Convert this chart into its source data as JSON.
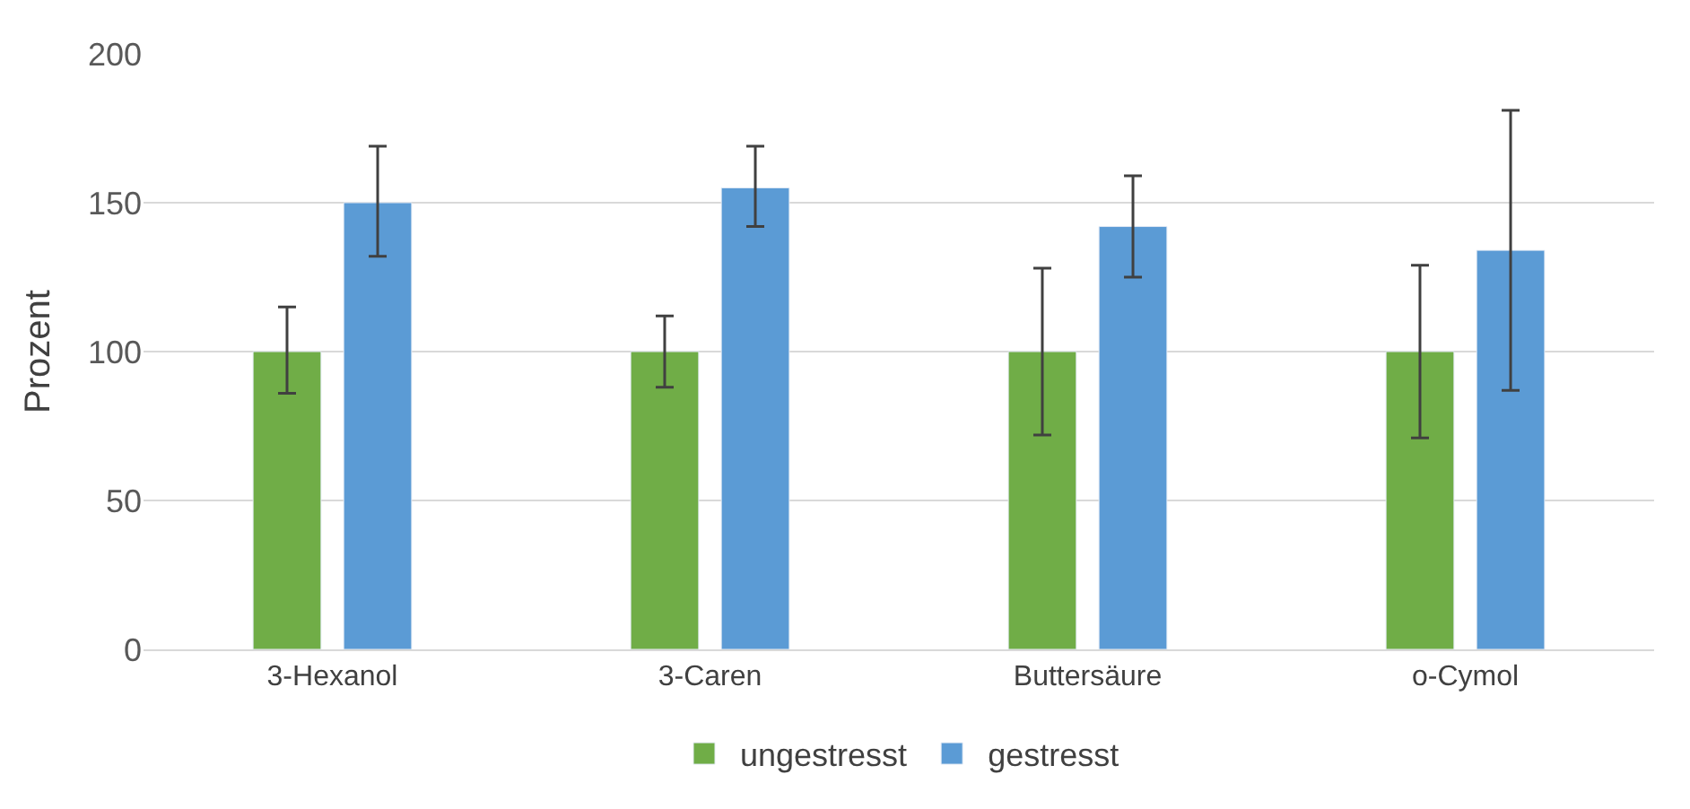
{
  "chart_data": {
    "type": "bar",
    "ylabel": "Prozent",
    "categories": [
      "3-Hexanol",
      "3-Caren",
      "Buttersäure",
      "o-Cymol"
    ],
    "series": [
      {
        "name": "ungestresst",
        "color": "#70ad47",
        "values": [
          100,
          100,
          100,
          100
        ],
        "errors": [
          [
            86,
            115
          ],
          [
            88,
            112
          ],
          [
            72,
            128
          ],
          [
            71,
            129
          ]
        ]
      },
      {
        "name": "gestresst",
        "color": "#5b9bd5",
        "values": [
          150,
          155,
          142,
          134
        ],
        "errors": [
          [
            132,
            169
          ],
          [
            142,
            169
          ],
          [
            125,
            159
          ],
          [
            87,
            181
          ]
        ]
      }
    ],
    "ylim": [
      0,
      200
    ],
    "yticks": [
      0,
      50,
      100,
      150,
      200
    ],
    "grid": "y",
    "legend": "bottom"
  }
}
